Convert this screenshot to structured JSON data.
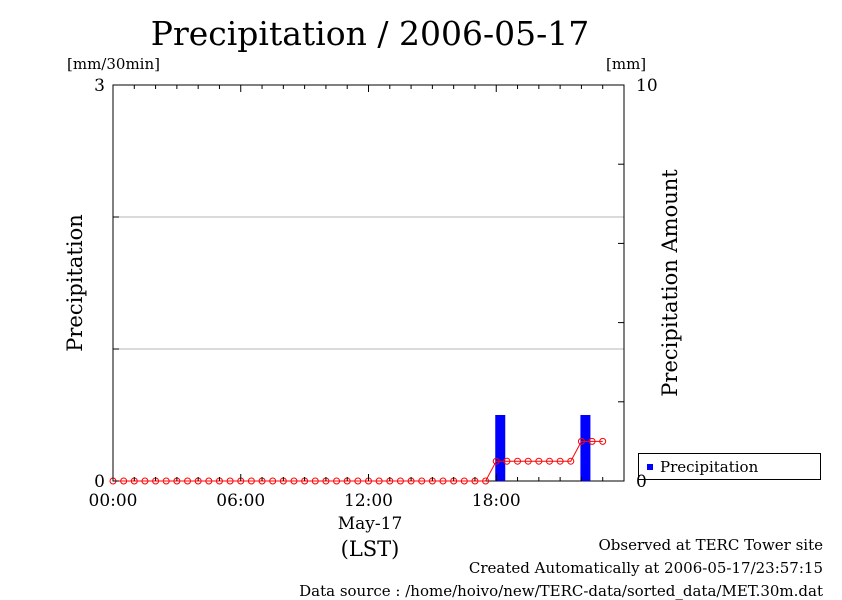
{
  "chart_data": {
    "type": "bar",
    "title": "Precipitation / 2006-05-17",
    "y_left": {
      "label": "Precipitation",
      "unit": "[mm/30min]",
      "ylim": [
        0,
        3
      ],
      "ticks": [
        "0",
        "3"
      ]
    },
    "y_right": {
      "label": "Precipitation Amount",
      "unit": "[mm]",
      "ylim": [
        0,
        10
      ],
      "ticks": [
        "0",
        "10"
      ]
    },
    "x": {
      "start": "00:00",
      "end": "24:00",
      "tick_labels": [
        "00:00",
        "06:00",
        "12:00",
        "18:00"
      ],
      "date_label": "May-17",
      "label": "(LST)"
    },
    "grid": true,
    "legend": {
      "position": "bottom-right",
      "entries": [
        "Precipitation"
      ]
    },
    "series": [
      {
        "name": "Precipitation",
        "kind": "bar",
        "axis": "left",
        "color": "#0000ff",
        "points": [
          {
            "time": "18:00",
            "value": 0.5
          },
          {
            "time": "22:00",
            "value": 0.5
          }
        ]
      },
      {
        "kind": "line-markers",
        "axis": "right",
        "color": "#ff0000",
        "interval_minutes": 30,
        "values": [
          0,
          0,
          0,
          0,
          0,
          0,
          0,
          0,
          0,
          0,
          0,
          0,
          0,
          0,
          0,
          0,
          0,
          0,
          0,
          0,
          0,
          0,
          0,
          0,
          0,
          0,
          0,
          0,
          0,
          0,
          0,
          0,
          0,
          0,
          0,
          0,
          0.5,
          0.5,
          0.5,
          0.5,
          0.5,
          0.5,
          0.5,
          0.5,
          1.0,
          1.0,
          1.0
        ]
      }
    ]
  },
  "footer": [
    "Observed at TERC Tower site",
    "Created Automatically at 2006-05-17/23:57:15",
    "Data source : /home/hoivo/new/TERC-data/sorted_data/MET.30m.dat"
  ]
}
